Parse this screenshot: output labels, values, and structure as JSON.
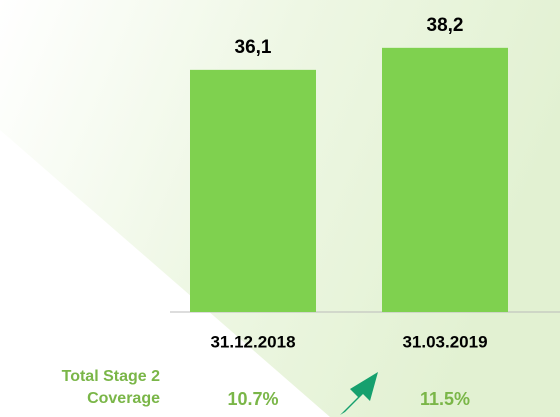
{
  "chart_data": {
    "type": "bar",
    "categories": [
      "31.12.2018",
      "31.03.2019"
    ],
    "values": [
      36.1,
      38.2
    ],
    "value_labels": [
      "36,1",
      "38,2"
    ],
    "color": "#7fd14f",
    "ylim": [
      13,
      42
    ],
    "coverage": {
      "label": "Total Stage 2 Coverage",
      "values": [
        10.7,
        11.5
      ],
      "value_labels": [
        "10.7%",
        "11.5%"
      ],
      "color": "#7ab648"
    }
  }
}
